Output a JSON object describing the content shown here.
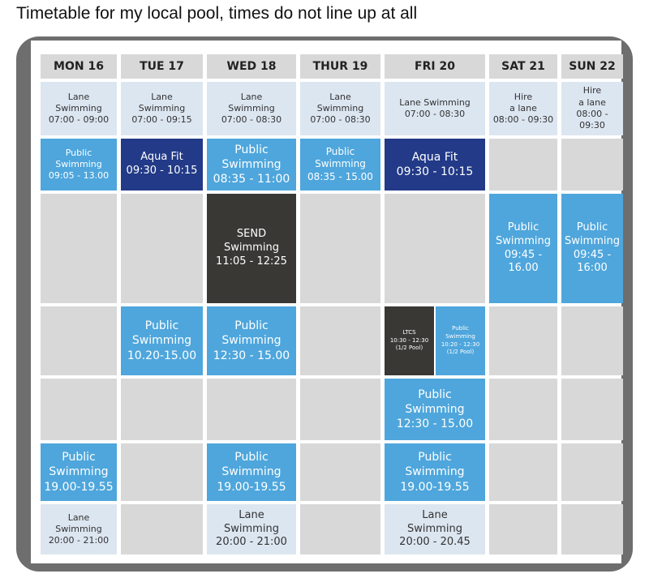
{
  "post": {
    "title": "Timetable for my local pool, times do not line up at all"
  },
  "timetable": {
    "headers": [
      "MON 16",
      "TUE 17",
      "WED 18",
      "THUR 19",
      "FRI 20",
      "SAT 21",
      "SUN 22"
    ],
    "row1": [
      "Lane\nSwimming\n07:00 - 09:00",
      "Lane\nSwimming\n07:00 - 09:15",
      "Lane\nSwimming\n07:00 - 08:30",
      "Lane\nSwimming\n07:00 - 08:30",
      "Lane Swimming\n07:00 - 08:30",
      "Hire\na lane\n08:00 - 09:30",
      "Hire\na lane\n08:00 -\n09:30"
    ],
    "row2": [
      "Public\nSwimming\n09:05 - 13.00",
      "Aqua Fit\n09:30 - 10:15",
      "Public\nSwimming\n08:35 - 11:00",
      "Public\nSwimming\n08:35 - 15.00",
      "Aqua Fit\n09:30 - 10:15"
    ],
    "row3": {
      "wed": "SEND\nSwimming\n11:05 - 12:25",
      "sat": "Public\nSwimming\n09:45 - 16.00",
      "sun": "Public\nSwimming\n09:45 -\n16:00"
    },
    "row4": {
      "tue": "Public\nSwimming\n10.20-15.00",
      "wed": "Public\nSwimming\n12:30 - 15.00",
      "fri_ltcs": "LTCS\n10:30 - 12:30\n(1/2 Pool)",
      "fri_public": "Public\nSwimming\n10:20 - 12:30\n(1/2 Pool)"
    },
    "row5": {
      "fri": "Public\nSwimming\n12:30 - 15.00"
    },
    "row6": {
      "mon": "Public\nSwimming\n19.00-19.55",
      "wed": "Public\nSwimming\n19.00-19.55",
      "fri": "Public\nSwimming\n19.00-19.55"
    },
    "row7": {
      "mon": "Lane\nSwimming\n20:00 - 21:00",
      "wed": "Lane\nSwimming\n20:00 - 21:00",
      "fri": "Lane\nSwimming\n20:00 - 20.45"
    }
  },
  "colors": {
    "lane": "#dce6f1",
    "public": "#4ea6dc",
    "aqua_fit": "#223a87",
    "send": "#3a3835",
    "empty": "#d8d8d8"
  }
}
